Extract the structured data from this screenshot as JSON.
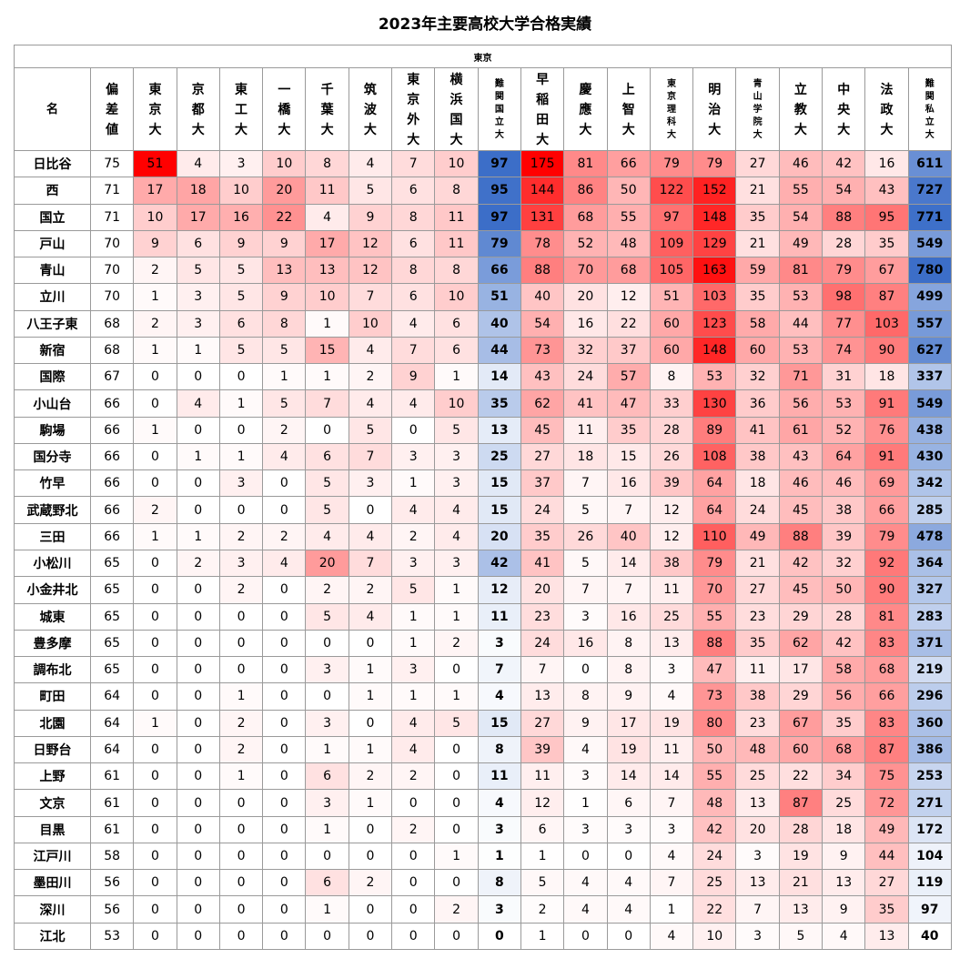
{
  "title": "2023年主要高校大学合格実績",
  "region": "東京",
  "chart_data": {
    "type": "table",
    "title": "2023年主要高校大学合格実績",
    "name_header": "名",
    "columns": [
      {
        "label": "偏差値",
        "key": "hensachi"
      },
      {
        "label": "東京大",
        "key": "todai"
      },
      {
        "label": "京都大",
        "key": "kyodai"
      },
      {
        "label": "東工大",
        "key": "tokodai"
      },
      {
        "label": "一橋大",
        "key": "hitotsubashi"
      },
      {
        "label": "千葉大",
        "key": "chiba"
      },
      {
        "label": "筑波大",
        "key": "tsukuba"
      },
      {
        "label": "東京外大",
        "key": "gaidai"
      },
      {
        "label": "横浜国大",
        "key": "yokokoku"
      },
      {
        "label": "難関国立大",
        "key": "nankan_kokuritsu"
      },
      {
        "label": "早稲田大",
        "key": "waseda"
      },
      {
        "label": "慶應大",
        "key": "keio"
      },
      {
        "label": "上智大",
        "key": "sophia"
      },
      {
        "label": "東京理科大",
        "key": "rika"
      },
      {
        "label": "明治大",
        "key": "meiji"
      },
      {
        "label": "青山学院大",
        "key": "aoyama"
      },
      {
        "label": "立教大",
        "key": "rikkyo"
      },
      {
        "label": "中央大",
        "key": "chuo"
      },
      {
        "label": "法政大",
        "key": "hosei"
      },
      {
        "label": "難関私立大",
        "key": "nankan_shiritsu"
      }
    ],
    "rows": [
      {
        "name": "日比谷",
        "values": [
          75,
          51,
          4,
          3,
          10,
          8,
          4,
          7,
          10,
          97,
          175,
          81,
          66,
          79,
          79,
          27,
          46,
          42,
          16,
          611
        ]
      },
      {
        "name": "西",
        "values": [
          71,
          17,
          18,
          10,
          20,
          11,
          5,
          6,
          8,
          95,
          144,
          86,
          50,
          122,
          152,
          21,
          55,
          54,
          43,
          727
        ]
      },
      {
        "name": "国立",
        "values": [
          71,
          10,
          17,
          16,
          22,
          4,
          9,
          8,
          11,
          97,
          131,
          68,
          55,
          97,
          148,
          35,
          54,
          88,
          95,
          771
        ]
      },
      {
        "name": "戸山",
        "values": [
          70,
          9,
          6,
          9,
          9,
          17,
          12,
          6,
          11,
          79,
          78,
          52,
          48,
          109,
          129,
          21,
          49,
          28,
          35,
          549
        ]
      },
      {
        "name": "青山",
        "values": [
          70,
          2,
          5,
          5,
          13,
          13,
          12,
          8,
          8,
          66,
          88,
          70,
          68,
          105,
          163,
          59,
          81,
          79,
          67,
          780
        ]
      },
      {
        "name": "立川",
        "values": [
          70,
          1,
          3,
          5,
          9,
          10,
          7,
          6,
          10,
          51,
          40,
          20,
          12,
          51,
          103,
          35,
          53,
          98,
          87,
          499
        ]
      },
      {
        "name": "八王子東",
        "values": [
          68,
          2,
          3,
          6,
          8,
          1,
          10,
          4,
          6,
          40,
          54,
          16,
          22,
          60,
          123,
          58,
          44,
          77,
          103,
          557
        ]
      },
      {
        "name": "新宿",
        "values": [
          68,
          1,
          1,
          5,
          5,
          15,
          4,
          7,
          6,
          44,
          73,
          32,
          37,
          60,
          148,
          60,
          53,
          74,
          90,
          627
        ]
      },
      {
        "name": "国際",
        "values": [
          67,
          0,
          0,
          0,
          1,
          1,
          2,
          9,
          1,
          14,
          43,
          24,
          57,
          8,
          53,
          32,
          71,
          31,
          18,
          337
        ]
      },
      {
        "name": "小山台",
        "values": [
          66,
          0,
          4,
          1,
          5,
          7,
          4,
          4,
          10,
          35,
          62,
          41,
          47,
          33,
          130,
          36,
          56,
          53,
          91,
          549
        ]
      },
      {
        "name": "駒場",
        "values": [
          66,
          1,
          0,
          0,
          2,
          0,
          5,
          0,
          5,
          13,
          45,
          11,
          35,
          28,
          89,
          41,
          61,
          52,
          76,
          438
        ]
      },
      {
        "name": "国分寺",
        "values": [
          66,
          0,
          1,
          1,
          4,
          6,
          7,
          3,
          3,
          25,
          27,
          18,
          15,
          26,
          108,
          38,
          43,
          64,
          91,
          430
        ]
      },
      {
        "name": "竹早",
        "values": [
          66,
          0,
          0,
          3,
          0,
          5,
          3,
          1,
          3,
          15,
          37,
          7,
          16,
          39,
          64,
          18,
          46,
          46,
          69,
          342
        ]
      },
      {
        "name": "武蔵野北",
        "values": [
          66,
          2,
          0,
          0,
          0,
          5,
          0,
          4,
          4,
          15,
          24,
          5,
          7,
          12,
          64,
          24,
          45,
          38,
          66,
          285
        ]
      },
      {
        "name": "三田",
        "values": [
          66,
          1,
          1,
          2,
          2,
          4,
          4,
          2,
          4,
          20,
          35,
          26,
          40,
          12,
          110,
          49,
          88,
          39,
          79,
          478
        ]
      },
      {
        "name": "小松川",
        "values": [
          65,
          0,
          2,
          3,
          4,
          20,
          7,
          3,
          3,
          42,
          41,
          5,
          14,
          38,
          79,
          21,
          42,
          32,
          92,
          364
        ]
      },
      {
        "name": "小金井北",
        "values": [
          65,
          0,
          0,
          2,
          0,
          2,
          2,
          5,
          1,
          12,
          20,
          7,
          7,
          11,
          70,
          27,
          45,
          50,
          90,
          327
        ]
      },
      {
        "name": "城東",
        "values": [
          65,
          0,
          0,
          0,
          0,
          5,
          4,
          1,
          1,
          11,
          23,
          3,
          16,
          25,
          55,
          23,
          29,
          28,
          81,
          283
        ]
      },
      {
        "name": "豊多摩",
        "values": [
          65,
          0,
          0,
          0,
          0,
          0,
          0,
          1,
          2,
          3,
          24,
          16,
          8,
          13,
          88,
          35,
          62,
          42,
          83,
          371
        ]
      },
      {
        "name": "調布北",
        "values": [
          65,
          0,
          0,
          0,
          0,
          3,
          1,
          3,
          0,
          7,
          7,
          0,
          8,
          3,
          47,
          11,
          17,
          58,
          68,
          219
        ]
      },
      {
        "name": "町田",
        "values": [
          64,
          0,
          0,
          1,
          0,
          0,
          1,
          1,
          1,
          4,
          13,
          8,
          9,
          4,
          73,
          38,
          29,
          56,
          66,
          296
        ]
      },
      {
        "name": "北園",
        "values": [
          64,
          1,
          0,
          2,
          0,
          3,
          0,
          4,
          5,
          15,
          27,
          9,
          17,
          19,
          80,
          23,
          67,
          35,
          83,
          360
        ]
      },
      {
        "name": "日野台",
        "values": [
          64,
          0,
          0,
          2,
          0,
          1,
          1,
          4,
          0,
          8,
          39,
          4,
          19,
          11,
          50,
          48,
          60,
          68,
          87,
          386
        ]
      },
      {
        "name": "上野",
        "values": [
          61,
          0,
          0,
          1,
          0,
          6,
          2,
          2,
          0,
          11,
          11,
          3,
          14,
          14,
          55,
          25,
          22,
          34,
          75,
          253
        ]
      },
      {
        "name": "文京",
        "values": [
          61,
          0,
          0,
          0,
          0,
          3,
          1,
          0,
          0,
          4,
          12,
          1,
          6,
          7,
          48,
          13,
          87,
          25,
          72,
          271
        ]
      },
      {
        "name": "目黒",
        "values": [
          61,
          0,
          0,
          0,
          0,
          1,
          0,
          2,
          0,
          3,
          6,
          3,
          3,
          3,
          42,
          20,
          28,
          18,
          49,
          172
        ]
      },
      {
        "name": "江戸川",
        "values": [
          58,
          0,
          0,
          0,
          0,
          0,
          0,
          0,
          1,
          1,
          1,
          0,
          0,
          4,
          24,
          3,
          19,
          9,
          44,
          104
        ]
      },
      {
        "name": "墨田川",
        "values": [
          56,
          0,
          0,
          0,
          0,
          6,
          2,
          0,
          0,
          8,
          5,
          4,
          4,
          7,
          25,
          13,
          21,
          13,
          27,
          119
        ]
      },
      {
        "name": "深川",
        "values": [
          56,
          0,
          0,
          0,
          0,
          1,
          0,
          0,
          2,
          3,
          2,
          4,
          4,
          1,
          22,
          7,
          13,
          9,
          35,
          97
        ]
      },
      {
        "name": "江北",
        "values": [
          53,
          0,
          0,
          0,
          0,
          0,
          0,
          0,
          0,
          0,
          1,
          0,
          0,
          4,
          10,
          3,
          5,
          4,
          13,
          40
        ]
      }
    ]
  }
}
